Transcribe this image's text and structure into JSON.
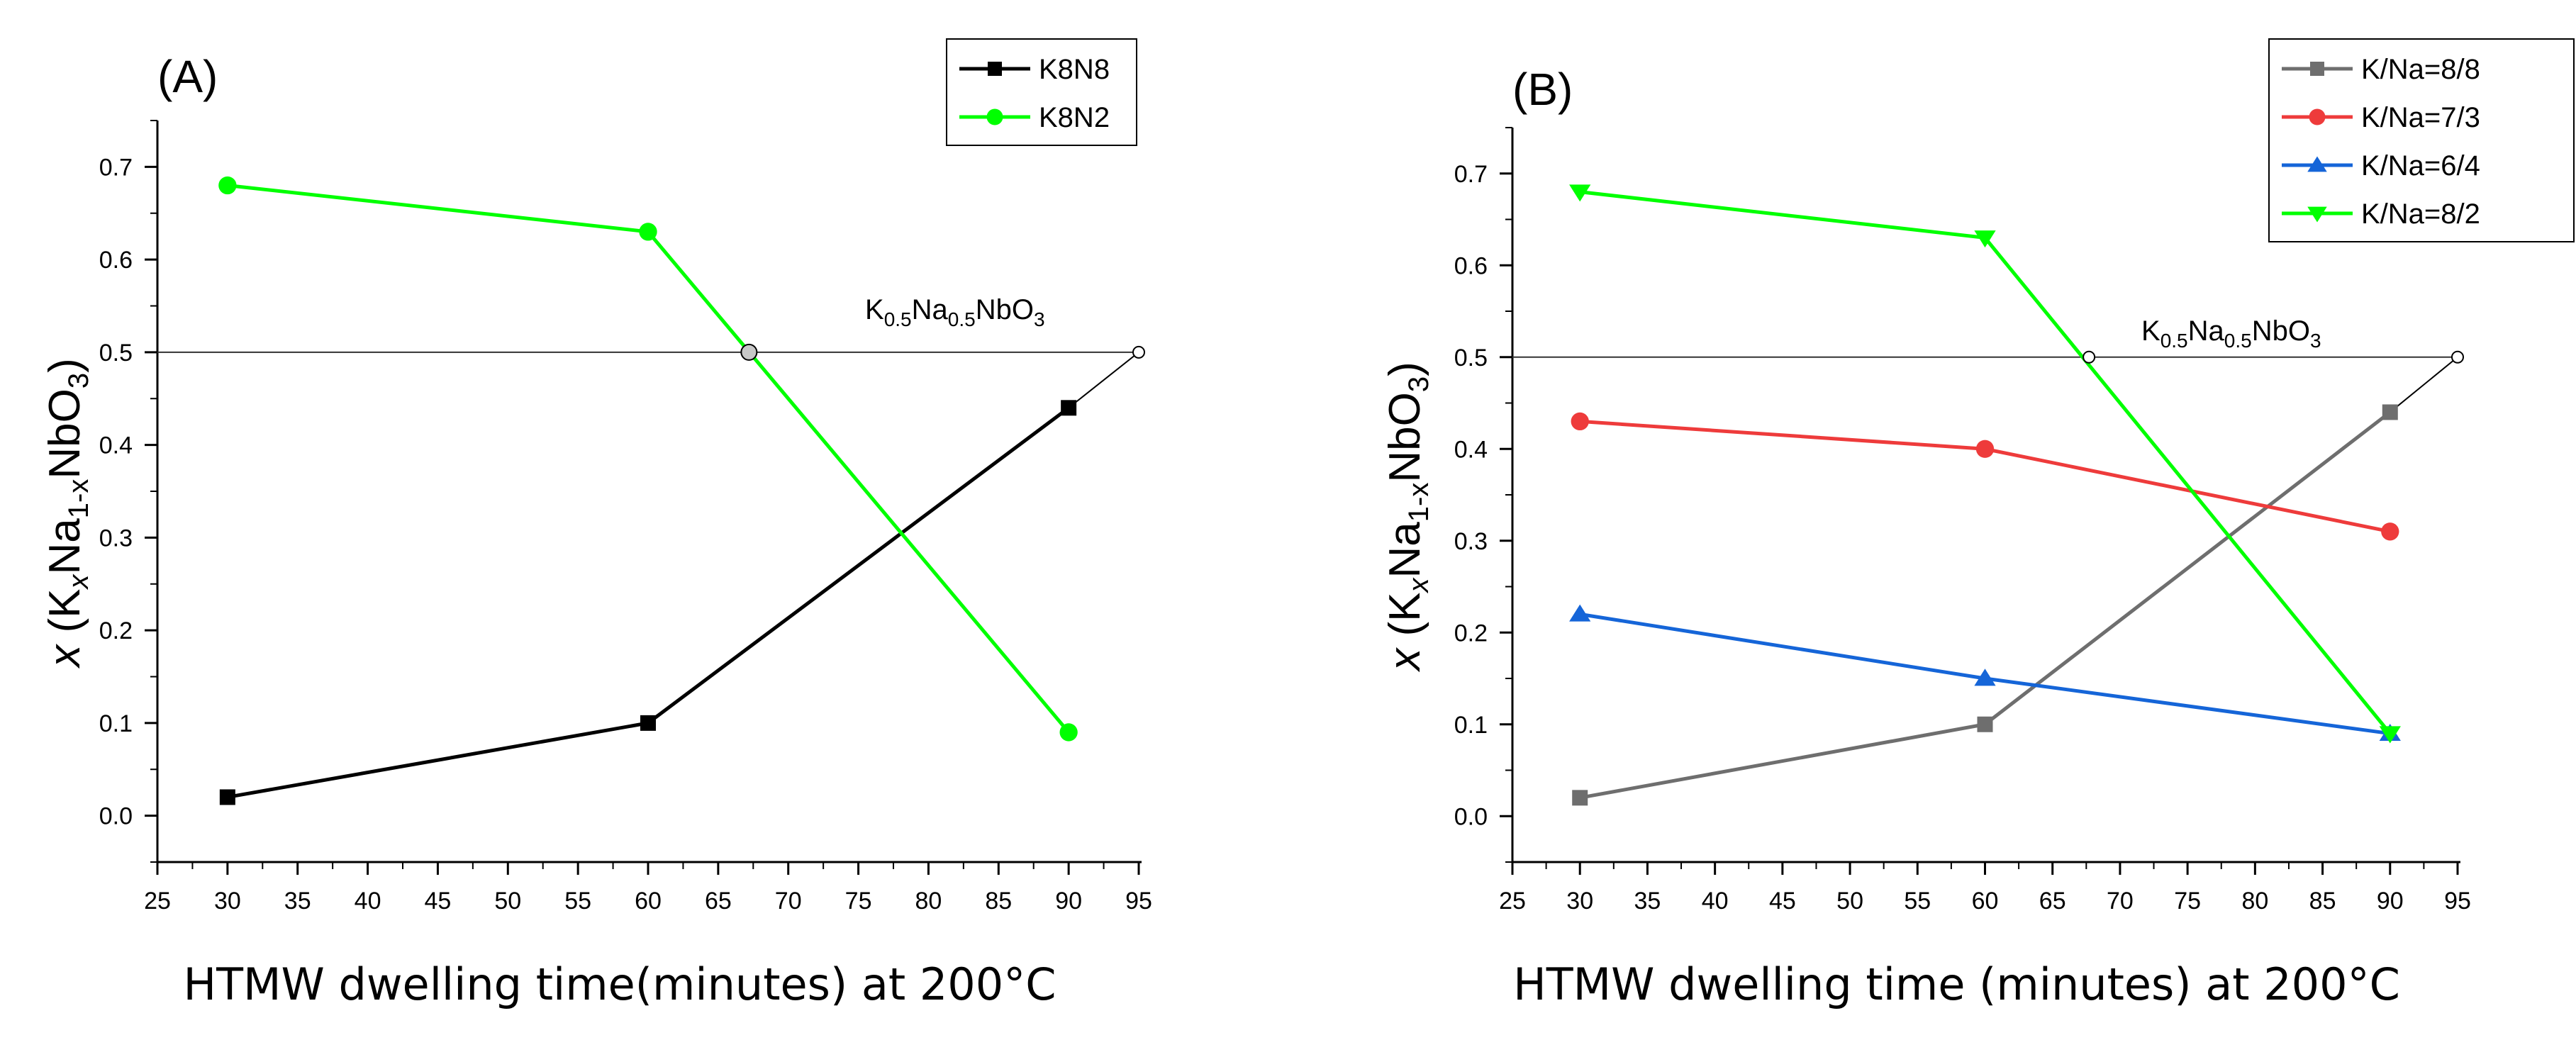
{
  "chart_data": [
    {
      "type": "line",
      "panel_label": "(A)",
      "xlabel": "HTMW dwelling time(minutes) at 200°C",
      "ylabel": {
        "prefix": "x",
        "formula": [
          "(K",
          "x",
          "Na",
          "1-x",
          "NbO",
          "3",
          ")"
        ]
      },
      "xlim": [
        25,
        95
      ],
      "ylim": [
        -0.05,
        0.75
      ],
      "xticks": [
        25,
        30,
        35,
        40,
        45,
        50,
        55,
        60,
        65,
        70,
        75,
        80,
        85,
        90,
        95
      ],
      "yticks": [
        0.0,
        0.1,
        0.2,
        0.3,
        0.4,
        0.5,
        0.6,
        0.7
      ],
      "xtick_labels": [
        "25",
        "30",
        "35",
        "40",
        "45",
        "50",
        "55",
        "60",
        "65",
        "70",
        "75",
        "80",
        "85",
        "90",
        "95"
      ],
      "ytick_labels": [
        "0.0",
        "0.1",
        "0.2",
        "0.3",
        "0.4",
        "0.5",
        "0.6",
        "0.7"
      ],
      "legend_position": "top-right",
      "reference_line": {
        "y": 0.5
      },
      "reference_label": [
        "K",
        "0.5",
        "Na",
        "0.5",
        "NbO",
        "3"
      ],
      "intersections": [
        {
          "x": 67.2,
          "y": 0.5,
          "fill": "#c8c8c8"
        },
        {
          "x": 95.0,
          "y": 0.5,
          "fill": "#ffffff"
        }
      ],
      "extension": {
        "from": [
          90,
          0.44
        ],
        "to": [
          95,
          0.5
        ]
      },
      "series": [
        {
          "name": "K8N8",
          "color": "#000000",
          "marker": "square",
          "x": [
            30,
            60,
            90
          ],
          "y": [
            0.02,
            0.1,
            0.44
          ]
        },
        {
          "name": "K8N2",
          "color": "#00ff00",
          "marker": "circle",
          "x": [
            30,
            60,
            90
          ],
          "y": [
            0.68,
            0.63,
            0.09
          ]
        }
      ]
    },
    {
      "type": "line",
      "panel_label": "(B)",
      "xlabel": "HTMW dwelling time (minutes) at 200°C",
      "ylabel": {
        "prefix": "x",
        "formula": [
          "(K",
          "x",
          "Na",
          "1-x",
          "NbO",
          "3",
          ")"
        ]
      },
      "xlim": [
        25,
        95
      ],
      "ylim": [
        -0.05,
        0.75
      ],
      "xticks": [
        25,
        30,
        35,
        40,
        45,
        50,
        55,
        60,
        65,
        70,
        75,
        80,
        85,
        90,
        95
      ],
      "yticks": [
        0.0,
        0.1,
        0.2,
        0.3,
        0.4,
        0.5,
        0.6,
        0.7
      ],
      "xtick_labels": [
        "25",
        "30",
        "35",
        "40",
        "45",
        "50",
        "55",
        "60",
        "65",
        "70",
        "75",
        "80",
        "85",
        "90",
        "95"
      ],
      "ytick_labels": [
        "0.0",
        "0.1",
        "0.2",
        "0.3",
        "0.4",
        "0.5",
        "0.6",
        "0.7"
      ],
      "legend_position": "top-right",
      "reference_line": {
        "y": 0.5
      },
      "reference_label": [
        "K",
        "0.5",
        "Na",
        "0.5",
        "NbO",
        "3"
      ],
      "intersections": [
        {
          "x": 67.7,
          "y": 0.5,
          "fill": "#ffffff"
        },
        {
          "x": 95.0,
          "y": 0.5,
          "fill": "#ffffff"
        }
      ],
      "extension": {
        "from": [
          90,
          0.44
        ],
        "to": [
          95,
          0.5
        ]
      },
      "series": [
        {
          "name": "K/Na=8/8",
          "color": "#6e6e6e",
          "marker": "square",
          "x": [
            30,
            60,
            90
          ],
          "y": [
            0.02,
            0.1,
            0.44
          ]
        },
        {
          "name": "K/Na=7/3",
          "color": "#ee3b3b",
          "marker": "circle",
          "x": [
            30,
            60,
            90
          ],
          "y": [
            0.43,
            0.4,
            0.31
          ]
        },
        {
          "name": "K/Na=6/4",
          "color": "#1565d8",
          "marker": "triangle-up",
          "x": [
            30,
            60,
            90
          ],
          "y": [
            0.22,
            0.15,
            0.09
          ]
        },
        {
          "name": "K/Na=8/2",
          "color": "#00ff00",
          "marker": "triangle-down",
          "x": [
            30,
            60,
            90
          ],
          "y": [
            0.68,
            0.63,
            0.09
          ]
        }
      ]
    }
  ]
}
